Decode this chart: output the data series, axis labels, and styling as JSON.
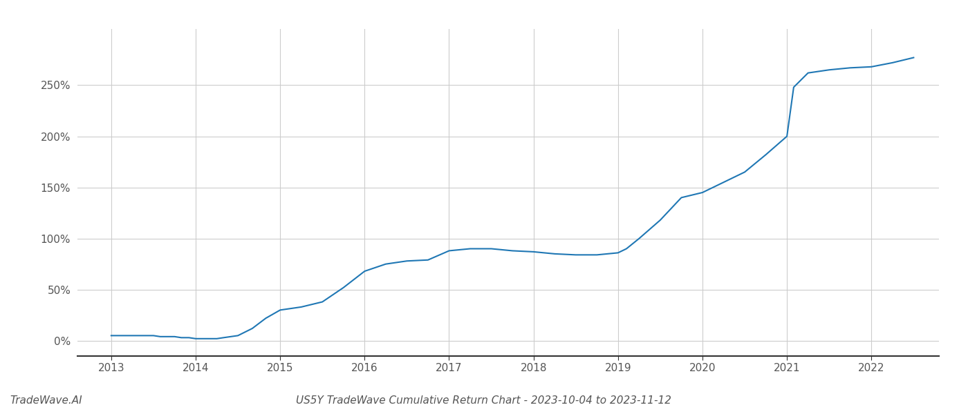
{
  "title": "US5Y TradeWave Cumulative Return Chart - 2023-10-04 to 2023-11-12",
  "watermark": "TradeWave.AI",
  "line_color": "#1f77b4",
  "line_width": 1.5,
  "background_color": "#ffffff",
  "grid_color": "#cccccc",
  "x_values": [
    2013.0,
    2013.08,
    2013.17,
    2013.25,
    2013.33,
    2013.42,
    2013.5,
    2013.58,
    2013.67,
    2013.75,
    2013.83,
    2013.92,
    2014.0,
    2014.08,
    2014.17,
    2014.25,
    2014.33,
    2014.5,
    2014.67,
    2014.83,
    2015.0,
    2015.25,
    2015.5,
    2015.75,
    2016.0,
    2016.25,
    2016.5,
    2016.75,
    2017.0,
    2017.25,
    2017.5,
    2017.75,
    2018.0,
    2018.25,
    2018.5,
    2018.75,
    2019.0,
    2019.1,
    2019.25,
    2019.5,
    2019.75,
    2020.0,
    2020.25,
    2020.5,
    2020.75,
    2021.0,
    2021.08,
    2021.25,
    2021.5,
    2021.75,
    2022.0,
    2022.25,
    2022.5
  ],
  "y_values": [
    5,
    5,
    5,
    5,
    5,
    5,
    5,
    4,
    4,
    4,
    3,
    3,
    2,
    2,
    2,
    2,
    3,
    5,
    12,
    22,
    30,
    33,
    38,
    52,
    68,
    75,
    78,
    79,
    88,
    90,
    90,
    88,
    87,
    85,
    84,
    84,
    86,
    90,
    100,
    118,
    140,
    145,
    155,
    165,
    182,
    200,
    248,
    262,
    265,
    267,
    268,
    272,
    277
  ],
  "xlim": [
    2012.6,
    2022.8
  ],
  "ylim": [
    -15,
    305
  ],
  "yticks": [
    0,
    50,
    100,
    150,
    200,
    250
  ],
  "xticks": [
    2013,
    2014,
    2015,
    2016,
    2017,
    2018,
    2019,
    2020,
    2021,
    2022
  ],
  "tick_fontsize": 11,
  "title_fontsize": 11,
  "watermark_fontsize": 11
}
